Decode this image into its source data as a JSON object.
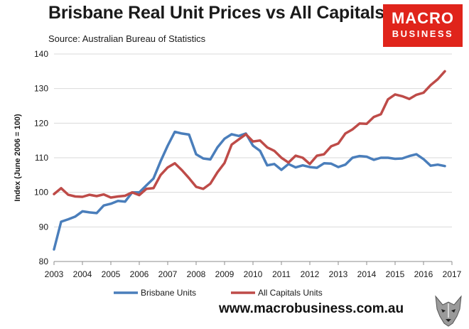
{
  "header": {
    "title": "Brisbane Real Unit Prices vs All Capitals",
    "source": "Source: Australian Bureau of Statistics"
  },
  "logo": {
    "line1": "MACRO",
    "line2": "BUSINESS",
    "color": "#e0241b"
  },
  "footer": {
    "url": "www.macrobusiness.com.au"
  },
  "chart_data": {
    "type": "line",
    "ylabel": "Index (June 2006 = 100)",
    "xlim": [
      2003,
      2017
    ],
    "ylim": [
      80,
      140
    ],
    "x_ticks": [
      2003,
      2004,
      2005,
      2006,
      2007,
      2008,
      2009,
      2010,
      2011,
      2012,
      2013,
      2014,
      2015,
      2016,
      2017
    ],
    "y_ticks": [
      80,
      90,
      100,
      110,
      120,
      130,
      140
    ],
    "grid": "horizontal",
    "legend": "bottom",
    "x": [
      2003.0,
      2003.25,
      2003.5,
      2003.75,
      2004.0,
      2004.25,
      2004.5,
      2004.75,
      2005.0,
      2005.25,
      2005.5,
      2005.75,
      2006.0,
      2006.25,
      2006.5,
      2006.75,
      2007.0,
      2007.25,
      2007.5,
      2007.75,
      2008.0,
      2008.25,
      2008.5,
      2008.75,
      2009.0,
      2009.25,
      2009.5,
      2009.75,
      2010.0,
      2010.25,
      2010.5,
      2010.75,
      2011.0,
      2011.25,
      2011.5,
      2011.75,
      2012.0,
      2012.25,
      2012.5,
      2012.75,
      2013.0,
      2013.25,
      2013.5,
      2013.75,
      2014.0,
      2014.25,
      2014.5,
      2014.75,
      2015.0,
      2015.25,
      2015.5,
      2015.75,
      2016.0,
      2016.25,
      2016.5,
      2016.75
    ],
    "series": [
      {
        "name": "Brisbane Units",
        "color": "#4a7ebb",
        "values": [
          83.5,
          91.5,
          92.2,
          93.0,
          94.5,
          94.2,
          94.0,
          96.2,
          96.7,
          97.5,
          97.3,
          100.0,
          100.0,
          102.0,
          104.0,
          109.0,
          113.5,
          117.5,
          117.0,
          116.7,
          111.0,
          109.8,
          109.5,
          113.0,
          115.5,
          116.8,
          116.3,
          117.0,
          113.5,
          112.0,
          107.8,
          108.2,
          106.5,
          108.2,
          107.2,
          107.8,
          107.3,
          107.1,
          108.4,
          108.3,
          107.3,
          108.0,
          110.0,
          110.5,
          110.3,
          109.4,
          110.0,
          110.0,
          109.7,
          109.8,
          110.5,
          111.0,
          109.6,
          107.7,
          108.0,
          107.6
        ]
      },
      {
        "name": "All Capitals Units",
        "color": "#be4b48",
        "values": [
          99.5,
          101.2,
          99.3,
          98.8,
          98.7,
          99.3,
          98.9,
          99.4,
          98.5,
          98.8,
          99.0,
          100.0,
          99.2,
          101.0,
          101.2,
          105.0,
          107.2,
          108.4,
          106.4,
          104.1,
          101.6,
          101.0,
          102.5,
          105.8,
          108.5,
          113.8,
          115.3,
          116.8,
          114.7,
          115.0,
          113.0,
          112.0,
          110.0,
          108.6,
          110.6,
          110.0,
          108.2,
          110.6,
          111.0,
          113.3,
          114.1,
          117.0,
          118.2,
          119.9,
          119.8,
          121.8,
          122.6,
          126.9,
          128.3,
          127.8,
          127.0,
          128.2,
          128.8,
          131.0,
          132.7,
          135.0
        ]
      }
    ]
  }
}
